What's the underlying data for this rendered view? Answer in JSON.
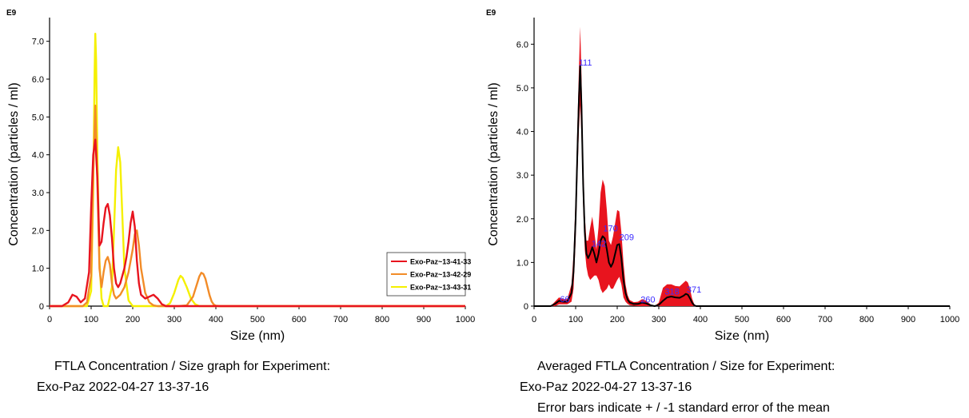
{
  "chart_data": [
    {
      "type": "line",
      "exponent_label": "E9",
      "xlabel": "Size (nm)",
      "ylabel": "Concentration (particles / ml)",
      "xlim": [
        0,
        1000
      ],
      "ylim": [
        0,
        7.5
      ],
      "xticks": [
        0,
        100,
        200,
        300,
        400,
        500,
        600,
        700,
        800,
        900,
        1000
      ],
      "yticks": [
        0,
        1.0,
        2.0,
        3.0,
        4.0,
        5.0,
        6.0,
        7.0
      ],
      "ytick_labels": [
        "0",
        "1.0",
        "2.0",
        "3.0",
        "4.0",
        "5.0",
        "6.0",
        "7.0"
      ],
      "legend_position": "bottom-right",
      "series": [
        {
          "name": "Exo-Paz~13-41-33",
          "color": "#e8141e",
          "x": [
            0,
            30,
            45,
            55,
            65,
            75,
            85,
            95,
            100,
            105,
            110,
            115,
            120,
            125,
            130,
            135,
            140,
            145,
            150,
            155,
            160,
            165,
            170,
            175,
            180,
            185,
            190,
            195,
            200,
            205,
            210,
            215,
            220,
            230,
            240,
            250,
            260,
            270,
            280,
            300,
            320,
            340,
            360,
            380,
            400,
            1000
          ],
          "y": [
            0,
            0,
            0.1,
            0.3,
            0.25,
            0.1,
            0.2,
            0.9,
            2.6,
            4.0,
            4.4,
            3.4,
            1.6,
            1.7,
            2.2,
            2.6,
            2.7,
            2.4,
            1.8,
            1.0,
            0.6,
            0.5,
            0.6,
            0.8,
            1.0,
            1.3,
            1.7,
            2.2,
            2.5,
            2.1,
            1.2,
            0.6,
            0.3,
            0.2,
            0.25,
            0.3,
            0.2,
            0.05,
            0,
            0,
            0,
            0,
            0,
            0,
            0,
            0
          ]
        },
        {
          "name": "Exo-Paz~13-42-29",
          "color": "#f28c28",
          "x": [
            0,
            80,
            90,
            100,
            105,
            110,
            115,
            120,
            125,
            130,
            135,
            140,
            145,
            150,
            155,
            160,
            170,
            180,
            190,
            200,
            205,
            210,
            215,
            220,
            230,
            240,
            250,
            260,
            270,
            290,
            310,
            330,
            345,
            355,
            360,
            365,
            370,
            375,
            380,
            385,
            390,
            395,
            400,
            410,
            1000
          ],
          "y": [
            0,
            0,
            0.1,
            0.8,
            3.5,
            5.3,
            3.2,
            1.0,
            0.5,
            0.9,
            1.2,
            1.3,
            1.1,
            0.6,
            0.3,
            0.2,
            0.3,
            0.5,
            0.9,
            1.5,
            1.9,
            2.0,
            1.6,
            1.0,
            0.35,
            0.1,
            0.02,
            0,
            0,
            0,
            0,
            0.02,
            0.25,
            0.6,
            0.78,
            0.88,
            0.85,
            0.72,
            0.5,
            0.28,
            0.12,
            0.04,
            0.01,
            0,
            0
          ]
        },
        {
          "name": "Exo-Paz~13-43-31",
          "color": "#f5f000",
          "x": [
            0,
            90,
            100,
            105,
            108,
            110,
            112,
            115,
            120,
            125,
            130,
            140,
            150,
            155,
            160,
            165,
            170,
            175,
            180,
            190,
            200,
            220,
            250,
            280,
            290,
            300,
            310,
            315,
            320,
            330,
            340,
            350,
            360,
            1000
          ],
          "y": [
            0,
            0,
            0.4,
            3.0,
            6.0,
            7.2,
            6.5,
            4.0,
            1.2,
            0.2,
            0,
            0,
            0.5,
            2.0,
            3.6,
            4.2,
            3.8,
            2.4,
            1.0,
            0.15,
            0,
            0,
            0,
            0,
            0.08,
            0.35,
            0.7,
            0.8,
            0.75,
            0.5,
            0.2,
            0.05,
            0,
            0
          ]
        }
      ]
    },
    {
      "type": "line",
      "exponent_label": "E9",
      "xlabel": "Size (nm)",
      "ylabel": "Concentration (particles / ml)",
      "xlim": [
        0,
        1000
      ],
      "ylim": [
        0,
        6.5
      ],
      "xticks": [
        0,
        100,
        200,
        300,
        400,
        500,
        600,
        700,
        800,
        900,
        1000
      ],
      "yticks": [
        0,
        1.0,
        2.0,
        3.0,
        4.0,
        5.0,
        6.0
      ],
      "ytick_labels": [
        "0",
        "1.0",
        "2.0",
        "3.0",
        "4.0",
        "5.0",
        "6.0"
      ],
      "mean_color": "#000000",
      "error_color": "#e8141e",
      "label_color": "#3b2bff",
      "x": [
        0,
        40,
        50,
        60,
        70,
        80,
        90,
        95,
        100,
        105,
        108,
        111,
        114,
        118,
        122,
        126,
        130,
        135,
        140,
        145,
        150,
        155,
        160,
        165,
        170,
        175,
        180,
        185,
        190,
        195,
        200,
        205,
        210,
        215,
        220,
        225,
        230,
        240,
        250,
        260,
        270,
        280,
        290,
        300,
        310,
        320,
        330,
        340,
        350,
        360,
        365,
        370,
        375,
        380,
        385,
        390,
        400,
        1000
      ],
      "mean": [
        0,
        0,
        0.05,
        0.12,
        0.1,
        0.1,
        0.3,
        0.8,
        2.0,
        3.8,
        4.8,
        5.5,
        4.6,
        2.8,
        1.7,
        1.2,
        1.1,
        1.2,
        1.35,
        1.2,
        1.0,
        1.2,
        1.5,
        1.6,
        1.55,
        1.3,
        1.0,
        0.9,
        1.0,
        1.2,
        1.4,
        1.42,
        1.1,
        0.6,
        0.3,
        0.15,
        0.08,
        0.05,
        0.05,
        0.08,
        0.06,
        0.02,
        0.0,
        0.03,
        0.12,
        0.2,
        0.22,
        0.2,
        0.19,
        0.24,
        0.28,
        0.26,
        0.18,
        0.08,
        0.02,
        0.0,
        0,
        0
      ],
      "error": [
        0,
        0,
        0.05,
        0.08,
        0.06,
        0.06,
        0.2,
        0.4,
        0.5,
        0.6,
        0.7,
        0.9,
        0.7,
        0.5,
        0.4,
        0.3,
        0.4,
        0.6,
        0.7,
        0.5,
        0.3,
        0.6,
        1.1,
        1.3,
        1.2,
        0.9,
        0.5,
        0.5,
        0.6,
        0.7,
        0.8,
        0.75,
        0.6,
        0.4,
        0.2,
        0.1,
        0.06,
        0.04,
        0.05,
        0.08,
        0.06,
        0.02,
        0.0,
        0.05,
        0.3,
        0.3,
        0.28,
        0.26,
        0.26,
        0.3,
        0.3,
        0.28,
        0.22,
        0.1,
        0.03,
        0.0,
        0,
        0
      ],
      "peak_labels": [
        {
          "x": 66,
          "text": "66",
          "y": 0.13
        },
        {
          "x": 111,
          "text": "111",
          "y": 5.55
        },
        {
          "x": 142,
          "text": "142",
          "y": 1.4
        },
        {
          "x": 170,
          "text": "170",
          "y": 1.75
        },
        {
          "x": 209,
          "text": "209",
          "y": 1.55
        },
        {
          "x": 260,
          "text": "260",
          "y": 0.12
        },
        {
          "x": 318,
          "text": "318",
          "y": 0.3
        },
        {
          "x": 371,
          "text": "371",
          "y": 0.35
        }
      ]
    }
  ],
  "captions": {
    "left": {
      "line1": "FTLA Concentration / Size graph for Experiment:",
      "exp_name": "Exo-Paz",
      "exp_date": "2022-04-27 13-37-16"
    },
    "right": {
      "line1": "Averaged FTLA Concentration / Size for Experiment:",
      "exp_name": "Exo-Paz",
      "exp_date": "2022-04-27 13-37-16",
      "line3": "Error bars indicate + / -1 standard error of the mean"
    }
  }
}
